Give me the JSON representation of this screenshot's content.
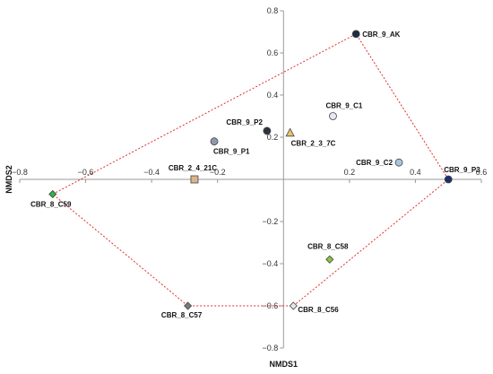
{
  "chart_data": {
    "type": "scatter",
    "xlabel": "NMDS1",
    "ylabel": "NMDS2",
    "xlim": [
      -0.8,
      0.6
    ],
    "ylim": [
      -0.8,
      0.8
    ],
    "xticks": [
      -0.8,
      -0.6,
      -0.4,
      -0.2,
      0.2,
      0.4,
      0.6
    ],
    "yticks": [
      0.8,
      0.6,
      0.4,
      0.2,
      -0.2,
      -0.4,
      -0.6,
      -0.8
    ],
    "xtick_labels": [
      "−0.8",
      "−0.6",
      "−0.4",
      "−0.2",
      "0.2",
      "0.4",
      "0.6"
    ],
    "ytick_labels": [
      "0.8",
      "0.6",
      "0.4",
      "0.2",
      "−0.2",
      "−0.4",
      "−0.6",
      "−0.8"
    ],
    "grid": false,
    "points": [
      {
        "label": "CBR_9_AK",
        "x": 0.22,
        "y": 0.69,
        "marker": "circle",
        "color": "#1f2a44"
      },
      {
        "label": "CBR_9_C1",
        "x": 0.15,
        "y": 0.3,
        "marker": "circle",
        "color": "#e8e8f0"
      },
      {
        "label": "CBR_9_P2",
        "x": -0.05,
        "y": 0.23,
        "marker": "circle",
        "color": "#2e3340"
      },
      {
        "label": "CBR_2_3_7C",
        "x": 0.02,
        "y": 0.22,
        "marker": "triangle",
        "color": "#e8c46a"
      },
      {
        "label": "CBR_9_P1",
        "x": -0.21,
        "y": 0.18,
        "marker": "circle",
        "color": "#8c99b0"
      },
      {
        "label": "CBR_9_C2",
        "x": 0.35,
        "y": 0.08,
        "marker": "circle",
        "color": "#a9c4dc"
      },
      {
        "label": "CBR_9_P3",
        "x": 0.5,
        "y": 0.0,
        "marker": "circle",
        "color": "#1c2f6e"
      },
      {
        "label": "CBR_2_4_21C",
        "x": -0.27,
        "y": 0.0,
        "marker": "square",
        "color": "#d9b48c"
      },
      {
        "label": "CBR_8_C59",
        "x": -0.7,
        "y": -0.07,
        "marker": "diamond",
        "color": "#2db34a"
      },
      {
        "label": "CBR_8_C58",
        "x": 0.14,
        "y": -0.38,
        "marker": "diamond",
        "color": "#8cc63f"
      },
      {
        "label": "CBR_8_C57",
        "x": -0.29,
        "y": -0.6,
        "marker": "diamond",
        "color": "#7a7a7a"
      },
      {
        "label": "CBR_8_C56",
        "x": 0.03,
        "y": -0.6,
        "marker": "diamond",
        "color": "#e8e4ee"
      }
    ],
    "hull": {
      "style": "dotted",
      "color": "#e03030",
      "vertices": [
        "CBR_8_C59",
        "CBR_9_AK",
        "CBR_9_P3",
        "CBR_8_C56",
        "CBR_8_C57",
        "CBR_8_C59"
      ]
    }
  }
}
